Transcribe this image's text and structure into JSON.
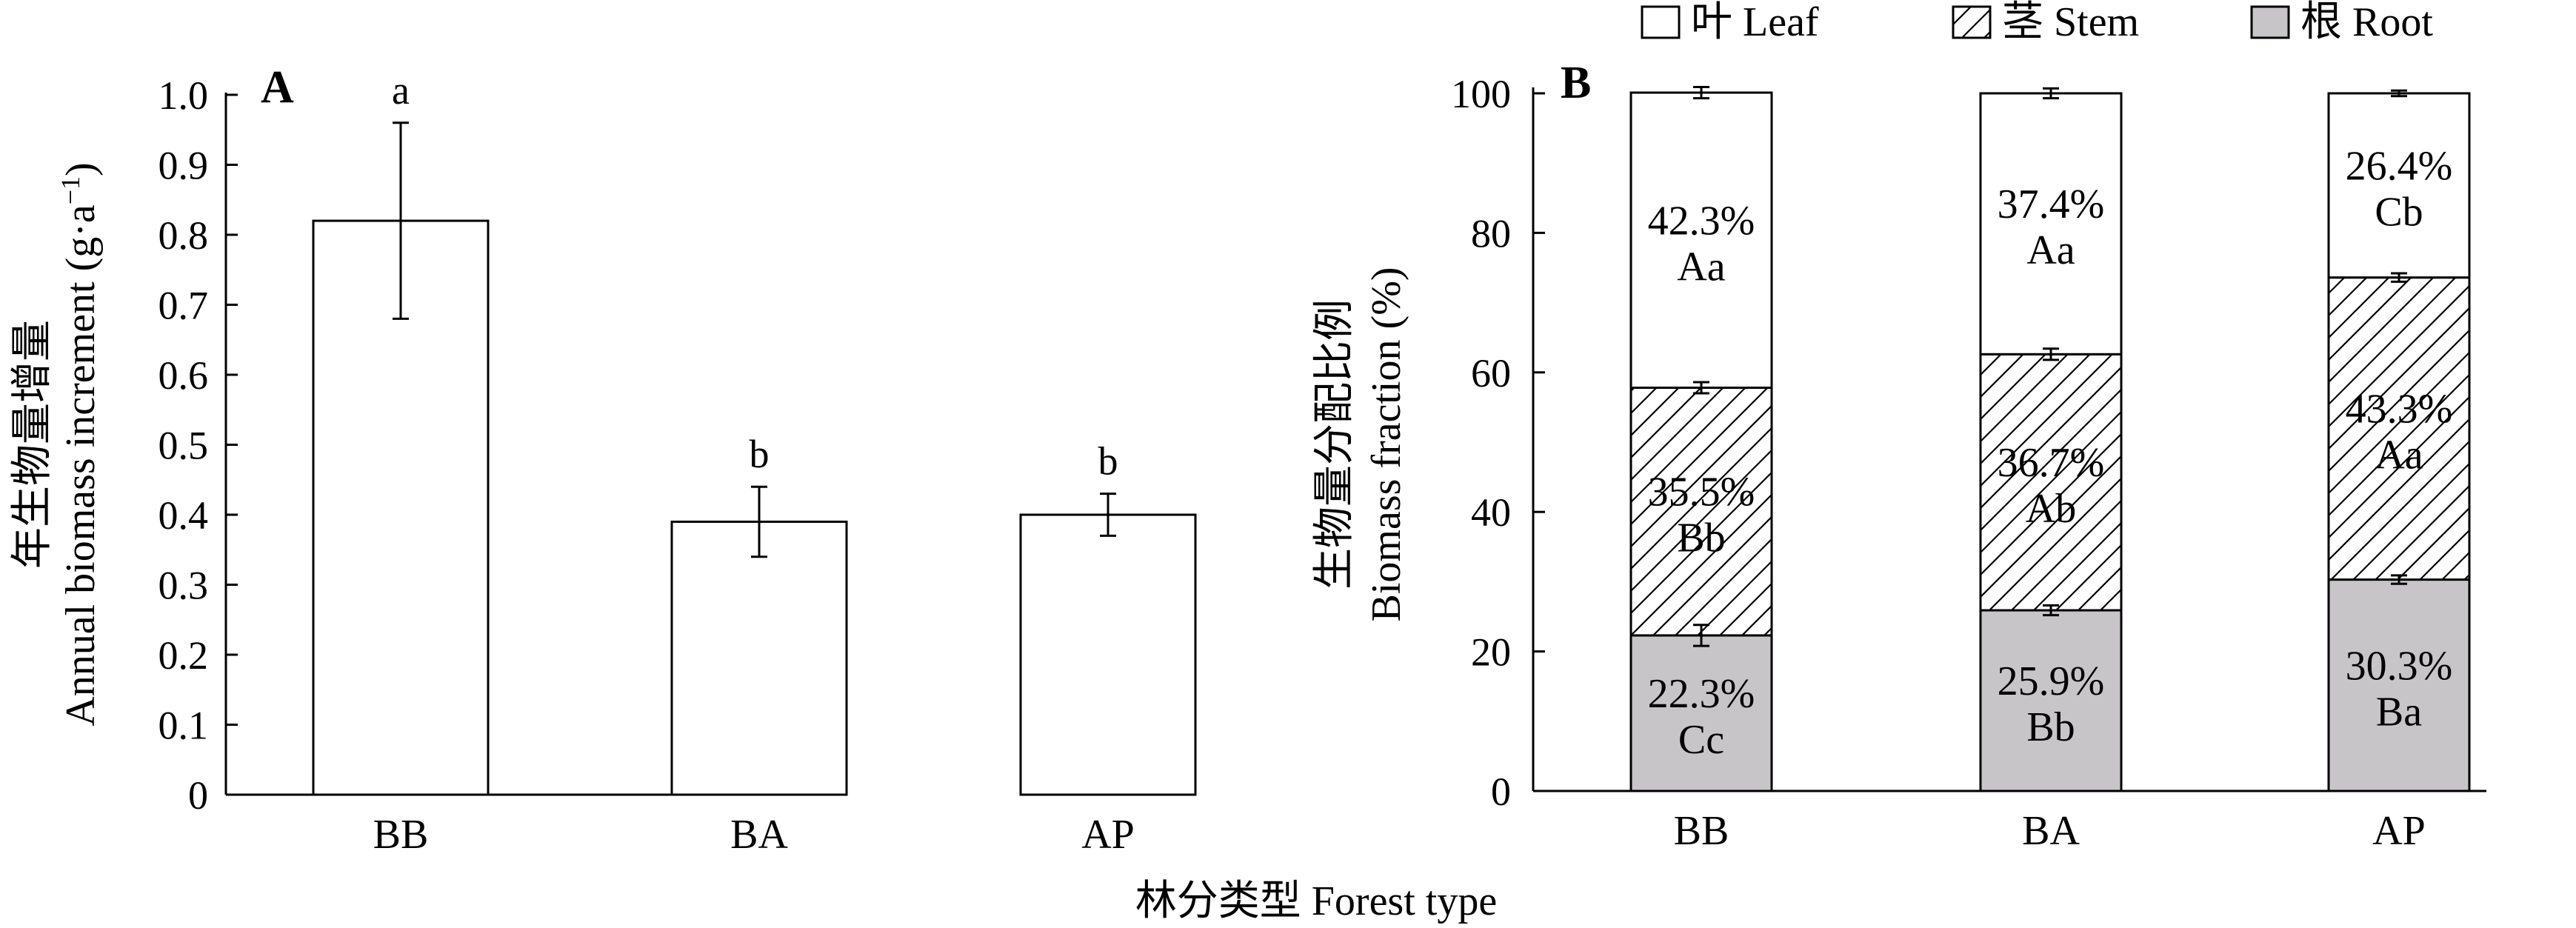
{
  "colors": {
    "leaf": "#ffffff",
    "stem_hatch": "#000000",
    "root": "#c8c5c9",
    "axis": "#000000"
  },
  "shared_xlabel": "林分类型 Forest type",
  "chart_data": [
    {
      "type": "bar",
      "panel_label": "A",
      "categories": [
        "BB",
        "BA",
        "AP"
      ],
      "values": [
        0.82,
        0.39,
        0.4
      ],
      "errors": [
        [
          0.68,
          0.96
        ],
        [
          0.34,
          0.44
        ],
        [
          0.37,
          0.43
        ]
      ],
      "significance": [
        "a",
        "b",
        "b"
      ],
      "ylabel_cn": "年生物量增量",
      "ylabel_en": "Annual biomass increment (g·a",
      "ylabel_en_sup": "−1",
      "ylabel_en_end": ")",
      "ylim": [
        0,
        1.0
      ],
      "yticks": [
        "0",
        "0.1",
        "0.2",
        "0.3",
        "0.4",
        "0.5",
        "0.6",
        "0.7",
        "0.8",
        "0.9",
        "1.0"
      ],
      "grid": false
    },
    {
      "type": "stacked-bar",
      "panel_label": "B",
      "categories": [
        "BB",
        "BA",
        "AP"
      ],
      "series": [
        {
          "name": "根 Root",
          "key": "root",
          "values": [
            22.3,
            25.9,
            30.3
          ],
          "labels": [
            "22.3%",
            "25.9%",
            "30.3%"
          ],
          "letters": [
            "Cc",
            "Bb",
            "Ba"
          ],
          "err": [
            1.5,
            0.7,
            0.6
          ]
        },
        {
          "name": "茎 Stem",
          "key": "stem",
          "values": [
            35.5,
            36.7,
            43.3
          ],
          "labels": [
            "35.5%",
            "36.7%",
            "43.3%"
          ],
          "letters": [
            "Bb",
            "Ab",
            "Aa"
          ],
          "err": [
            0.8,
            0.8,
            0.6
          ]
        },
        {
          "name": "叶 Leaf",
          "key": "leaf",
          "values": [
            42.3,
            37.4,
            26.4
          ],
          "labels": [
            "42.3%",
            "37.4%",
            "26.4%"
          ],
          "letters": [
            "Aa",
            "Aa",
            "Cb"
          ],
          "err": [
            0.8,
            0.7,
            0.4
          ]
        }
      ],
      "legend_order": [
        "leaf",
        "stem",
        "root"
      ],
      "legend_position": "top",
      "ylabel_cn": "生物量分配比例",
      "ylabel_en": "Biomass fraction (%)",
      "ylim": [
        0,
        100
      ],
      "yticks": [
        "0",
        "20",
        "40",
        "60",
        "80",
        "100"
      ],
      "grid": false
    }
  ]
}
